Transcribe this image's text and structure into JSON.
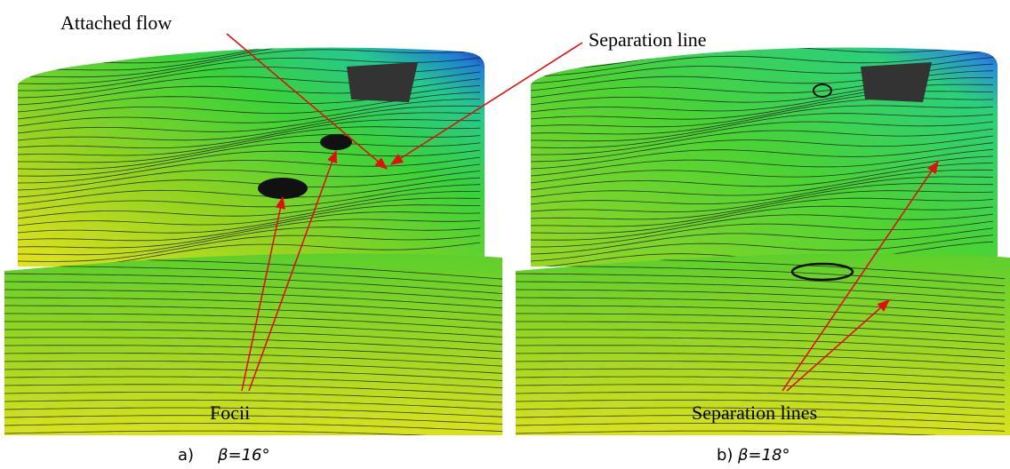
{
  "annotations": {
    "attached_flow": "Attached flow",
    "separation_line": "Separation line",
    "focii": "Focii",
    "separation_lines": "Separation lines"
  },
  "panels": [
    {
      "label": "a)",
      "angle": "β=16°"
    },
    {
      "label": "b)",
      "angle": "β=18°"
    }
  ]
}
